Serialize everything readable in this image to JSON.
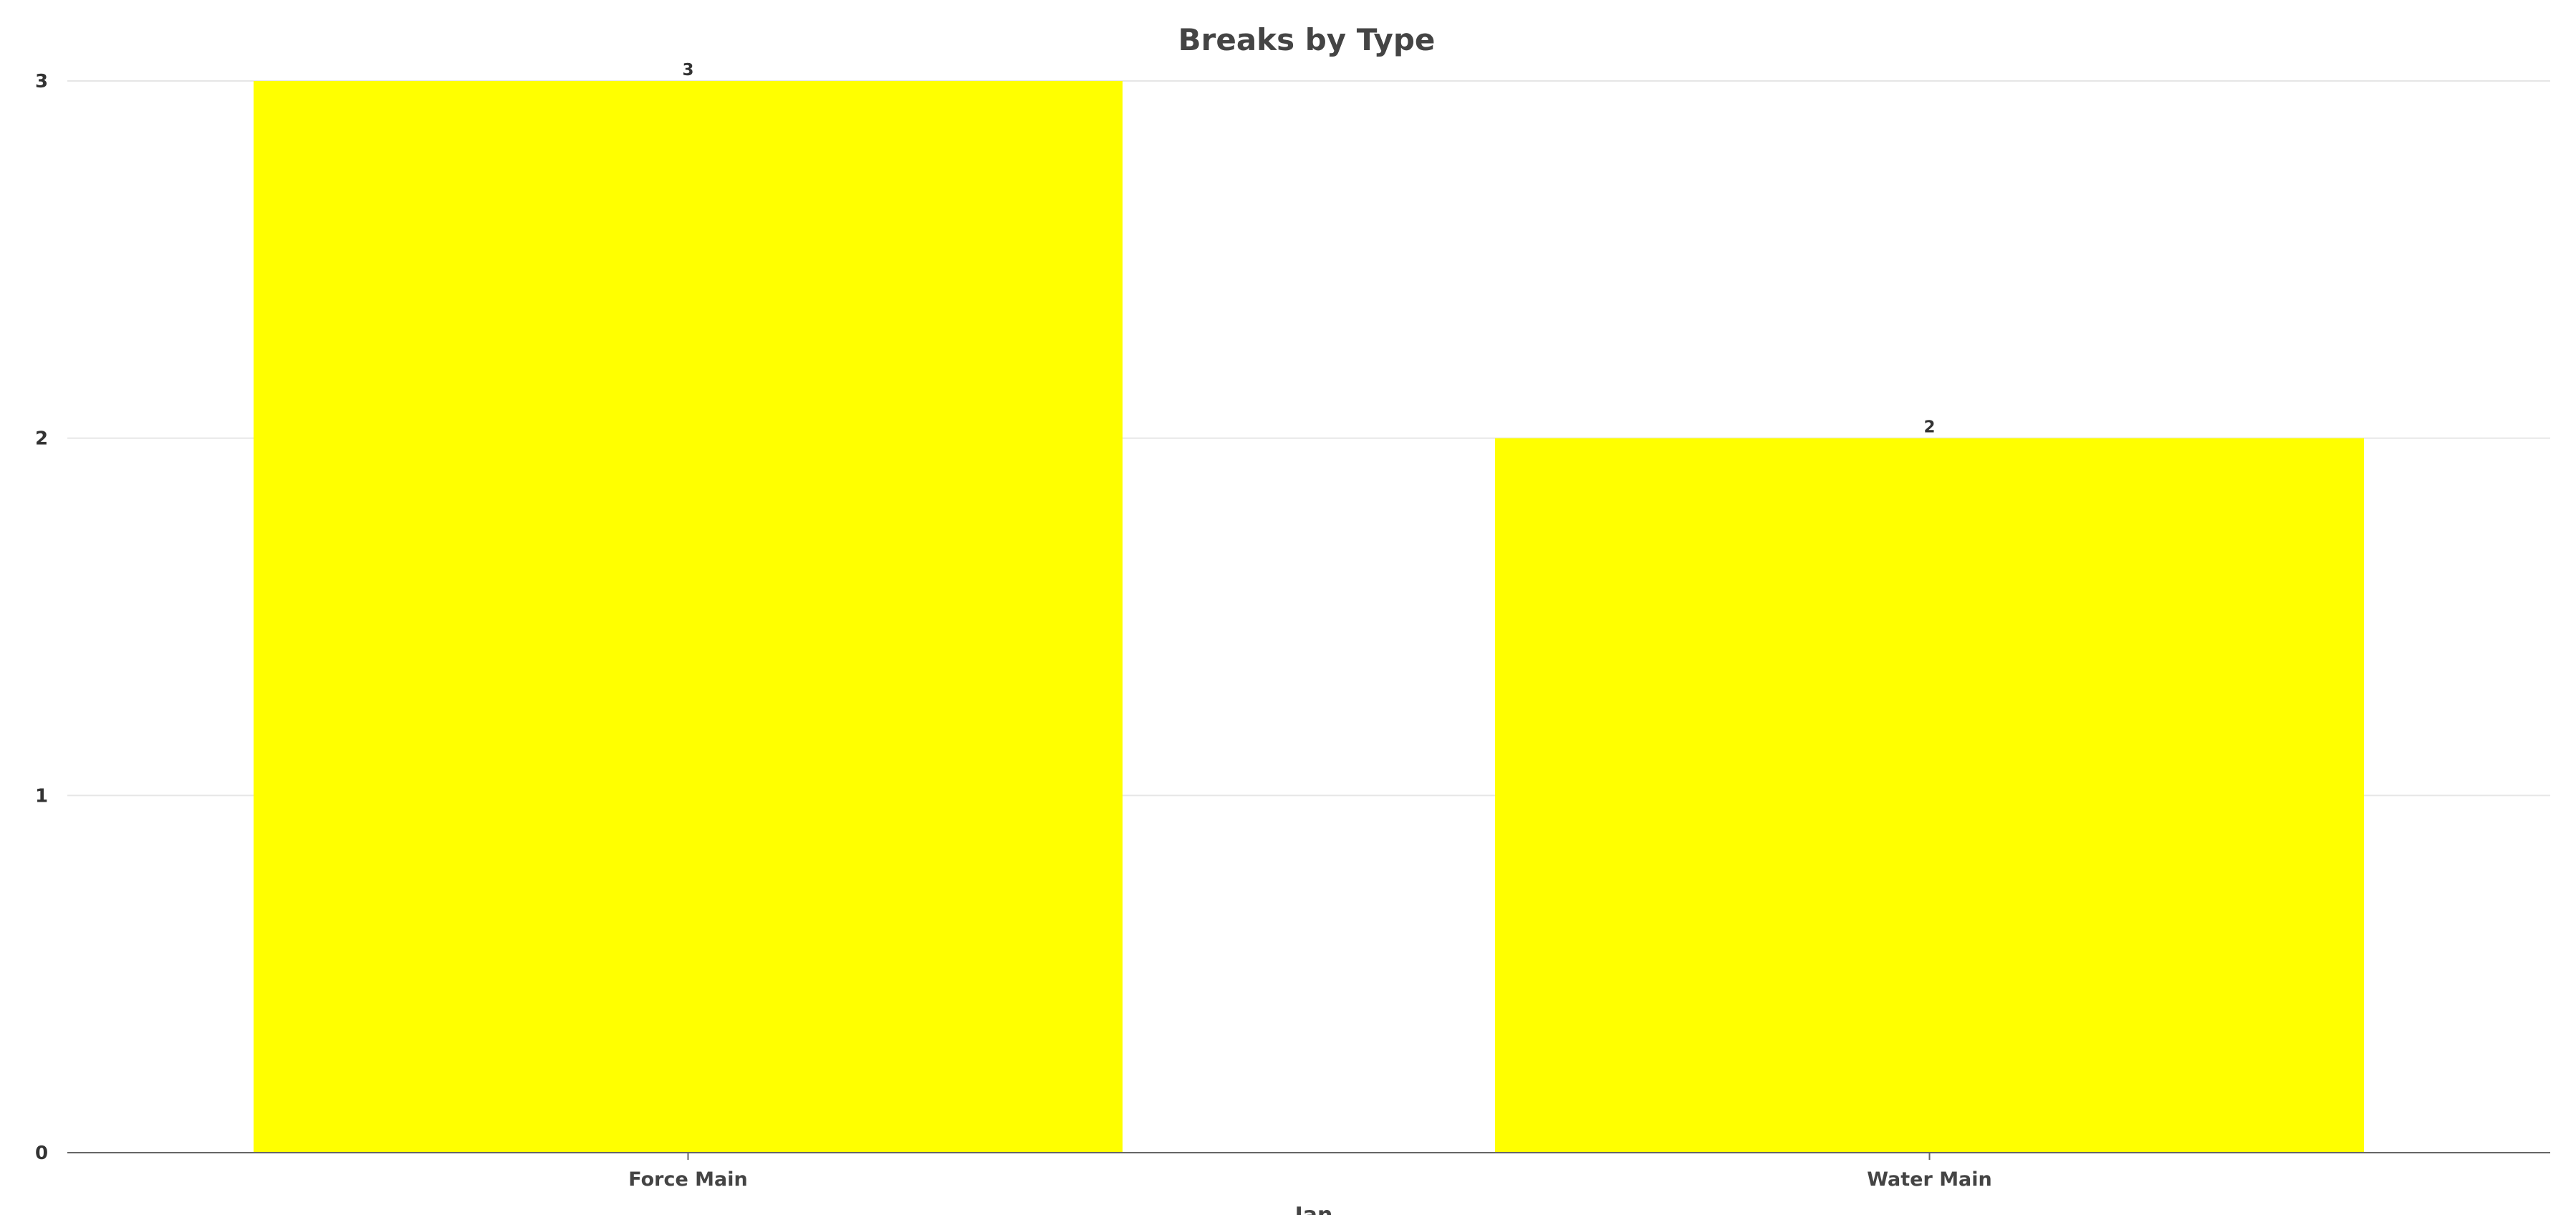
{
  "chart_data": {
    "type": "bar",
    "title": "Breaks by Type",
    "xlabel": "Jan",
    "ylabel": "",
    "categories": [
      "Force Main",
      "Water Main"
    ],
    "values": [
      3,
      2
    ],
    "ylim": [
      0,
      3
    ],
    "yticks": [
      0,
      1,
      2,
      3
    ],
    "data_labels": [
      "3",
      "2"
    ],
    "grid": true,
    "legend": "none",
    "colors": {
      "bar": "#ffff00",
      "grid": "#e6e6e6",
      "axis": "#666666",
      "text": "#444444"
    }
  }
}
